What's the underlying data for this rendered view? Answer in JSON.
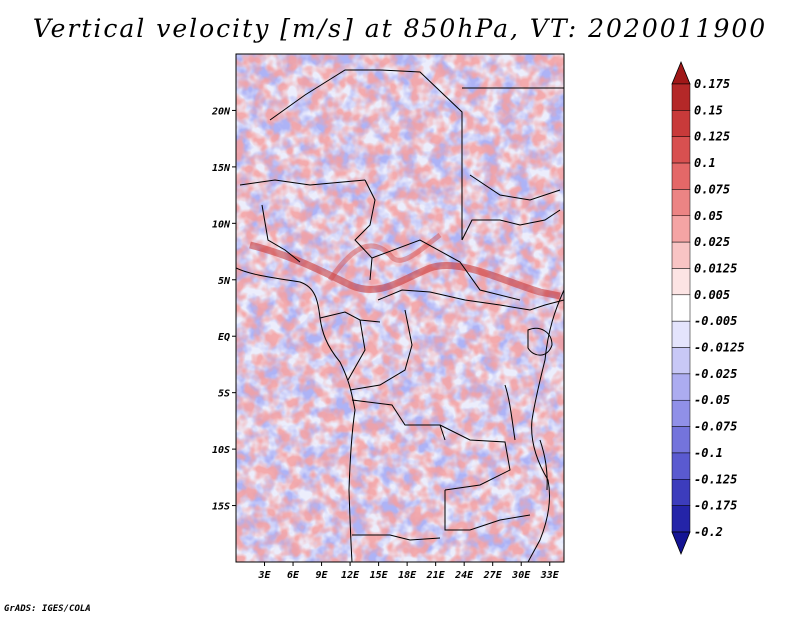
{
  "title": "Vertical velocity [m/s] at 850hPa, VT: 2020011900",
  "credit": "GrADS: IGES/COLA",
  "map": {
    "variable": "Vertical velocity",
    "units": "m/s",
    "level": "850hPa",
    "valid_time": "2020011900",
    "lon_range": [
      0,
      34.5
    ],
    "lat_range": [
      -20,
      25
    ],
    "lat_ticks": [
      {
        "value": 20,
        "label": "20N"
      },
      {
        "value": 15,
        "label": "15N"
      },
      {
        "value": 10,
        "label": "10N"
      },
      {
        "value": 5,
        "label": "5N"
      },
      {
        "value": 0,
        "label": "EQ"
      },
      {
        "value": -5,
        "label": "5S"
      },
      {
        "value": -10,
        "label": "10S"
      },
      {
        "value": -15,
        "label": "15S"
      }
    ],
    "lon_ticks": [
      {
        "value": 3,
        "label": "3E"
      },
      {
        "value": 6,
        "label": "6E"
      },
      {
        "value": 9,
        "label": "9E"
      },
      {
        "value": 12,
        "label": "12E"
      },
      {
        "value": 15,
        "label": "15E"
      },
      {
        "value": 18,
        "label": "18E"
      },
      {
        "value": 21,
        "label": "21E"
      },
      {
        "value": 24,
        "label": "24E"
      },
      {
        "value": 27,
        "label": "27E"
      },
      {
        "value": 30,
        "label": "30E"
      },
      {
        "value": 33,
        "label": "33E"
      }
    ]
  },
  "colorbar": {
    "labels": [
      "0.175",
      "0.15",
      "0.125",
      "0.1",
      "0.075",
      "0.05",
      "0.025",
      "0.0125",
      "0.005",
      "-0.005",
      "-0.0125",
      "-0.025",
      "-0.05",
      "-0.075",
      "-0.1",
      "-0.125",
      "-0.175",
      "-0.2"
    ],
    "colors": [
      "#a01818",
      "#b42828",
      "#c83a3a",
      "#d85050",
      "#e46868",
      "#ec8484",
      "#f4a4a4",
      "#f8c4c4",
      "#fce4e4",
      "#ffffff",
      "#e4e4fc",
      "#c8c8f6",
      "#acacf0",
      "#9090e8",
      "#7474dc",
      "#5a5ad0",
      "#3c3cbc",
      "#2424a8",
      "#141494"
    ]
  }
}
